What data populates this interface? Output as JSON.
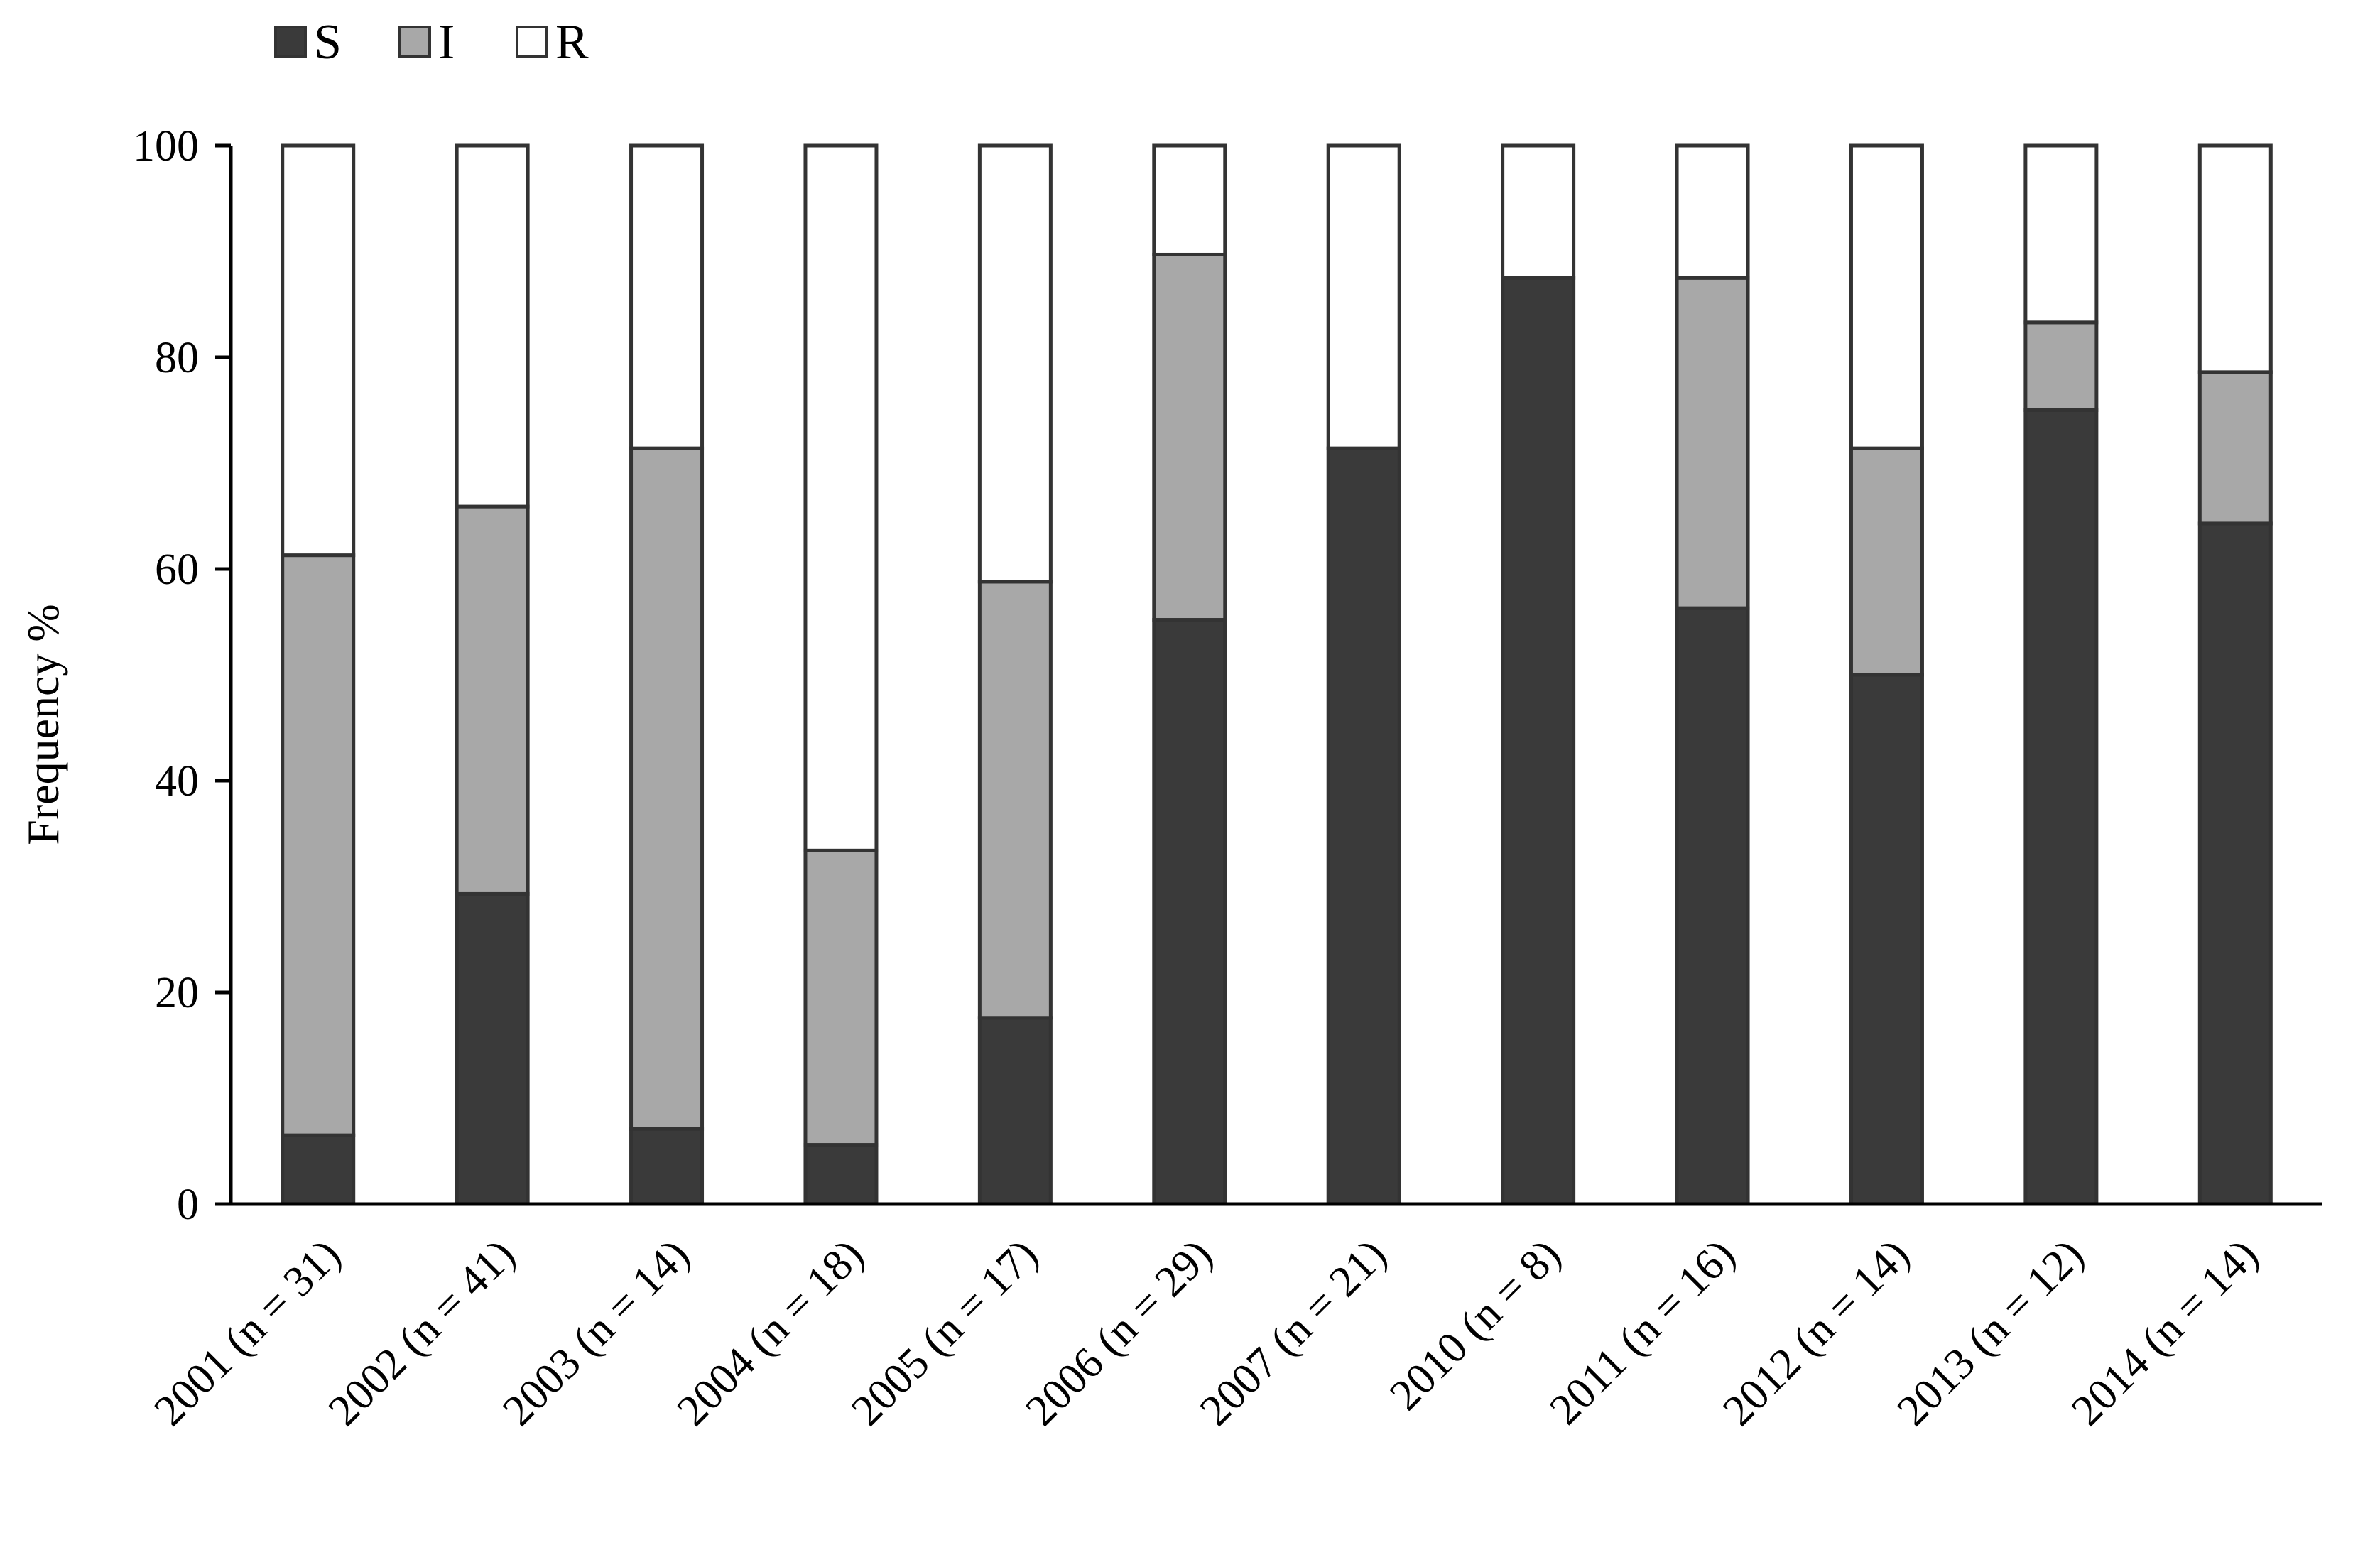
{
  "chart_data": {
    "type": "bar",
    "stacked": true,
    "categories": [
      "2001 (n = 31)",
      "2002 (n = 41)",
      "2003 (n = 14)",
      "2004 (n = 18)",
      "2005 (n = 17)",
      "2006 (n = 29)",
      "2007 (n = 21)",
      "2010 (n = 8)",
      "2011 (n = 16)",
      "2012 (n = 14)",
      "2013 (n = 12)",
      "2014 (n = 14)"
    ],
    "series": [
      {
        "name": "S",
        "color": "#3a3a3a",
        "values": [
          6.5,
          29.3,
          7.1,
          5.6,
          17.6,
          55.2,
          71.4,
          87.5,
          56.3,
          50.0,
          75.0,
          64.3
        ]
      },
      {
        "name": "I",
        "color": "#a8a8a8",
        "values": [
          54.8,
          36.6,
          64.3,
          27.8,
          41.2,
          34.5,
          0,
          0,
          31.2,
          21.4,
          8.3,
          14.3
        ]
      },
      {
        "name": "R",
        "color": "#ffffff",
        "values": [
          38.7,
          34.1,
          28.6,
          66.6,
          41.2,
          10.3,
          28.6,
          12.5,
          12.5,
          28.6,
          16.7,
          21.4
        ]
      }
    ],
    "title": "",
    "xlabel": "",
    "ylabel": "Frequency %",
    "ylim": [
      0,
      100
    ],
    "yticks": [
      "0",
      "20",
      "40",
      "60",
      "80",
      "100"
    ],
    "legend_position": "top-left",
    "grid": false
  }
}
